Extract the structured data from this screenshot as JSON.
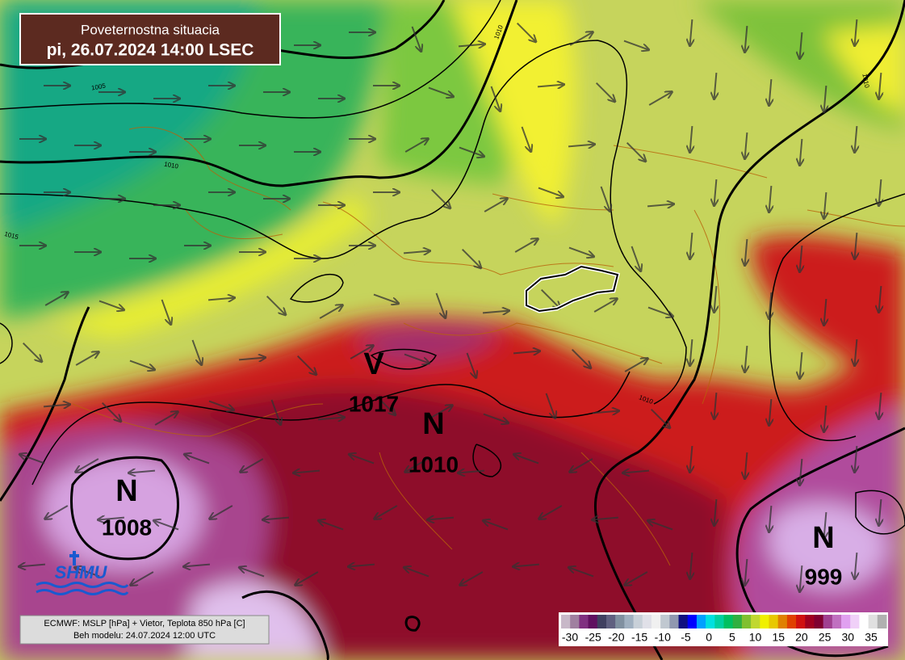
{
  "header": {
    "title": "Poveternostna situacia",
    "subtitle": "pi, 26.07.2024 14:00 LSEC"
  },
  "pressure_centers": [
    {
      "type": "N",
      "value": 1008
    },
    {
      "type": "V",
      "value": 1017
    },
    {
      "type": "N",
      "value": 1010
    },
    {
      "type": "N",
      "value": 999
    }
  ],
  "isobar_labels": [
    "1005",
    "1010",
    "1015",
    "1010",
    "1010",
    "1010"
  ],
  "logo": "SHMU",
  "footer": {
    "line1": "ECMWF: MSLP [hPa] + Vietor, Teplota 850 hPa [C]",
    "line2": "Beh modelu: 24.07.2024 12:00 UTC"
  },
  "legend": {
    "ticks": [
      -30,
      -25,
      -20,
      -15,
      -10,
      -5,
      0,
      5,
      10,
      15,
      20,
      25,
      30,
      35
    ]
  }
}
